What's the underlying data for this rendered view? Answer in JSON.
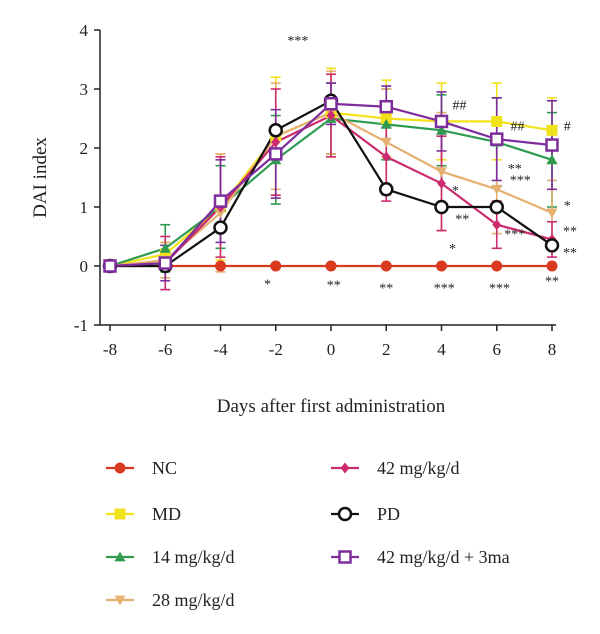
{
  "chart_data": {
    "type": "line",
    "xlabel": "Days after first administration",
    "ylabel": "DAI index",
    "x": [
      -8,
      -6,
      -4,
      -2,
      0,
      2,
      4,
      6,
      8
    ],
    "xlim": [
      -8,
      8
    ],
    "ylim": [
      -1,
      4
    ],
    "xticks": [
      "-8",
      "-6",
      "-4",
      "-2",
      "0",
      "2",
      "4",
      "6",
      "8"
    ],
    "yticks": [
      "-1",
      "0",
      "1",
      "2",
      "3",
      "4"
    ],
    "grid": false,
    "legend": "bottom",
    "series": [
      {
        "name": "NC",
        "key": "nc",
        "color": "#d9391f",
        "marker": "circle",
        "values": [
          0,
          0,
          0,
          0,
          0,
          0,
          0,
          0,
          0
        ],
        "err": [
          0.1,
          0,
          0,
          0,
          0,
          0,
          0,
          0,
          0
        ]
      },
      {
        "name": "MD",
        "key": "md",
        "color": "#f2e21b",
        "marker": "square",
        "values": [
          0,
          0.2,
          1.0,
          2.2,
          2.6,
          2.5,
          2.45,
          2.45,
          2.3
        ],
        "err": [
          0.05,
          0.2,
          0.9,
          1.0,
          0.75,
          0.65,
          0.65,
          0.65,
          0.55
        ]
      },
      {
        "name": "14 mg/kg/d",
        "key": "d14",
        "color": "#2f9b50",
        "marker": "triangle",
        "values": [
          0,
          0.3,
          1.0,
          1.8,
          2.5,
          2.4,
          2.3,
          2.1,
          1.8
        ],
        "err": [
          0.05,
          0.4,
          0.7,
          0.75,
          0.6,
          0.6,
          0.6,
          0.75,
          0.8
        ]
      },
      {
        "name": "28 mg/kg/d",
        "key": "d28",
        "color": "#e6b070",
        "marker": "triangle-down",
        "values": [
          0,
          0.1,
          0.9,
          2.2,
          2.6,
          2.1,
          1.6,
          1.3,
          0.9
        ],
        "err": [
          0.05,
          0.3,
          1.0,
          0.9,
          0.7,
          0.9,
          1.0,
          0.75,
          0.55
        ]
      },
      {
        "name": "42 mg/kg/d",
        "key": "d42",
        "color": "#cc2b6e",
        "marker": "diamond",
        "values": [
          0,
          0.05,
          1.0,
          2.1,
          2.55,
          1.85,
          1.4,
          0.7,
          0.45
        ],
        "err": [
          0.05,
          0.45,
          0.85,
          0.9,
          0.7,
          0.75,
          0.8,
          0.4,
          0.3
        ]
      },
      {
        "name": "PD",
        "key": "pd",
        "color": "#111111",
        "marker": "circle-open",
        "values": [
          0,
          0,
          0.65,
          2.3,
          2.8,
          1.3,
          1.0,
          1.0,
          0.35
        ],
        "err": [
          0.05,
          0,
          0,
          0,
          0,
          0,
          0,
          0,
          0
        ]
      },
      {
        "name": "42 mg/kg/d + 3ma",
        "key": "d42ma",
        "color": "#7d2d9c",
        "marker": "square-open",
        "values": [
          0,
          0.05,
          1.1,
          1.9,
          2.75,
          2.7,
          2.45,
          2.15,
          2.05
        ],
        "err": [
          0.05,
          0.3,
          0.7,
          0.75,
          0.35,
          0.35,
          0.5,
          0.7,
          0.75
        ]
      }
    ],
    "annotations": [
      {
        "text": "***",
        "x": -1.2,
        "y": 3.75
      },
      {
        "text": "*",
        "x": -2.3,
        "y": -0.38
      },
      {
        "text": "**",
        "x": 0.1,
        "y": -0.4
      },
      {
        "text": "**",
        "x": 2.0,
        "y": -0.45
      },
      {
        "text": "***",
        "x": 4.1,
        "y": -0.45
      },
      {
        "text": "***",
        "x": 6.1,
        "y": -0.45
      },
      {
        "text": "**",
        "x": 8.0,
        "y": -0.33
      },
      {
        "text": "##",
        "x": 4.65,
        "y": 2.65
      },
      {
        "text": "##",
        "x": 6.75,
        "y": 2.3
      },
      {
        "text": "#",
        "x": 8.55,
        "y": 2.3
      },
      {
        "text": "*",
        "x": 4.5,
        "y": 1.2
      },
      {
        "text": "**",
        "x": 4.75,
        "y": 0.72
      },
      {
        "text": "*",
        "x": 4.4,
        "y": 0.22
      },
      {
        "text": "**",
        "x": 6.65,
        "y": 1.58
      },
      {
        "text": "***",
        "x": 6.85,
        "y": 1.38
      },
      {
        "text": "***",
        "x": 6.65,
        "y": 0.47
      },
      {
        "text": "*",
        "x": 8.55,
        "y": 0.95
      },
      {
        "text": "**",
        "x": 8.65,
        "y": 0.52
      },
      {
        "text": "**",
        "x": 8.65,
        "y": 0.15
      }
    ]
  },
  "legend": {
    "items": [
      {
        "label": "NC",
        "series": "nc"
      },
      {
        "label": "MD",
        "series": "md"
      },
      {
        "label": "14 mg/kg/d",
        "series": "d14"
      },
      {
        "label": "28 mg/kg/d",
        "series": "d28"
      },
      {
        "label": "42 mg/kg/d",
        "series": "d42"
      },
      {
        "label": "PD",
        "series": "pd"
      },
      {
        "label": "42 mg/kg/d + 3ma",
        "series": "d42ma"
      }
    ]
  }
}
